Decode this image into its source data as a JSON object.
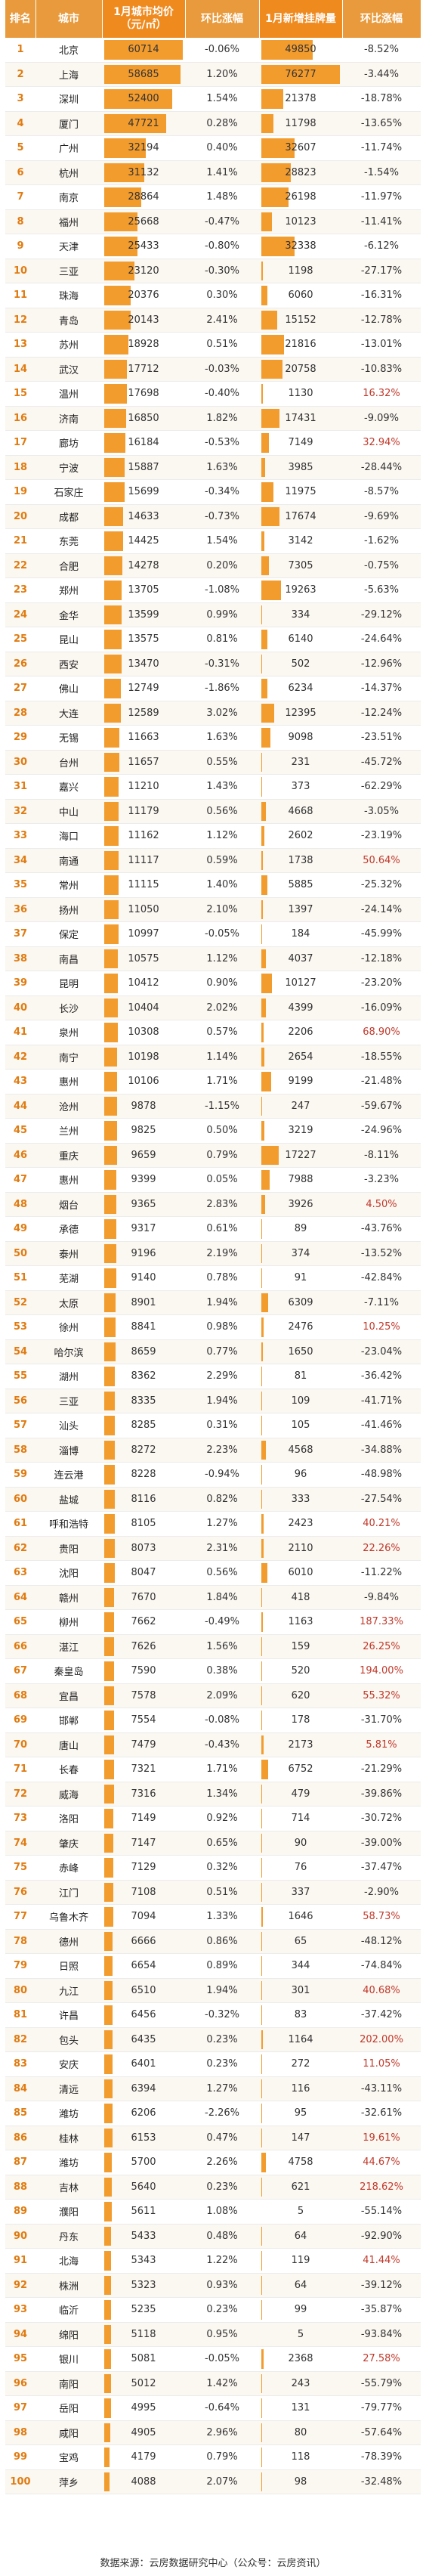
{
  "headers": {
    "rank": "排名",
    "city": "城市",
    "price": "1月城市均价（元/㎡）",
    "price_change": "环比涨幅",
    "listing": "1月新增挂牌量",
    "listing_change": "环比涨幅"
  },
  "rows": [
    {
      "rank": "1",
      "city": "北京",
      "price": "60714",
      "price_change": "-0.06%",
      "listing": "49850",
      "listing_change": "-8.52%"
    },
    {
      "rank": "2",
      "city": "上海",
      "price": "58685",
      "price_change": "1.20%",
      "listing": "76277",
      "listing_change": "-3.44%"
    },
    {
      "rank": "3",
      "city": "深圳",
      "price": "52400",
      "price_change": "1.54%",
      "listing": "21378",
      "listing_change": "-18.78%"
    },
    {
      "rank": "4",
      "city": "厦门",
      "price": "47721",
      "price_change": "0.28%",
      "listing": "11798",
      "listing_change": "-13.65%"
    },
    {
      "rank": "5",
      "city": "广州",
      "price": "32194",
      "price_change": "0.40%",
      "listing": "32607",
      "listing_change": "-11.74%"
    },
    {
      "rank": "6",
      "city": "杭州",
      "price": "31132",
      "price_change": "1.41%",
      "listing": "28823",
      "listing_change": "-1.54%"
    },
    {
      "rank": "7",
      "city": "南京",
      "price": "28864",
      "price_change": "1.48%",
      "listing": "26198",
      "listing_change": "-11.97%"
    },
    {
      "rank": "8",
      "city": "福州",
      "price": "25668",
      "price_change": "-0.47%",
      "listing": "10123",
      "listing_change": "-11.41%"
    },
    {
      "rank": "9",
      "city": "天津",
      "price": "25433",
      "price_change": "-0.80%",
      "listing": "32338",
      "listing_change": "-6.12%"
    },
    {
      "rank": "10",
      "city": "三亚",
      "price": "23120",
      "price_change": "-0.30%",
      "listing": "1198",
      "listing_change": "-27.17%"
    },
    {
      "rank": "11",
      "city": "珠海",
      "price": "20376",
      "price_change": "0.30%",
      "listing": "6060",
      "listing_change": "-16.31%"
    },
    {
      "rank": "12",
      "city": "青岛",
      "price": "20143",
      "price_change": "2.41%",
      "listing": "15152",
      "listing_change": "-12.78%"
    },
    {
      "rank": "13",
      "city": "苏州",
      "price": "18928",
      "price_change": "0.51%",
      "listing": "21816",
      "listing_change": "-13.01%"
    },
    {
      "rank": "14",
      "city": "武汉",
      "price": "17712",
      "price_change": "-0.03%",
      "listing": "20758",
      "listing_change": "-10.83%"
    },
    {
      "rank": "15",
      "city": "温州",
      "price": "17698",
      "price_change": "-0.40%",
      "listing": "1130",
      "listing_change": "16.32%"
    },
    {
      "rank": "16",
      "city": "济南",
      "price": "16850",
      "price_change": "1.82%",
      "listing": "17431",
      "listing_change": "-9.09%"
    },
    {
      "rank": "17",
      "city": "廊坊",
      "price": "16184",
      "price_change": "-0.53%",
      "listing": "7149",
      "listing_change": "32.94%"
    },
    {
      "rank": "18",
      "city": "宁波",
      "price": "15887",
      "price_change": "1.63%",
      "listing": "3985",
      "listing_change": "-28.44%"
    },
    {
      "rank": "19",
      "city": "石家庄",
      "price": "15699",
      "price_change": "-0.34%",
      "listing": "11975",
      "listing_change": "-8.57%"
    },
    {
      "rank": "20",
      "city": "成都",
      "price": "14633",
      "price_change": "-0.73%",
      "listing": "17674",
      "listing_change": "-9.69%"
    },
    {
      "rank": "21",
      "city": "东莞",
      "price": "14425",
      "price_change": "1.54%",
      "listing": "3142",
      "listing_change": "-1.62%"
    },
    {
      "rank": "22",
      "city": "合肥",
      "price": "14278",
      "price_change": "0.20%",
      "listing": "7305",
      "listing_change": "-0.75%"
    },
    {
      "rank": "23",
      "city": "郑州",
      "price": "13705",
      "price_change": "-1.08%",
      "listing": "19263",
      "listing_change": "-5.63%"
    },
    {
      "rank": "24",
      "city": "金华",
      "price": "13599",
      "price_change": "0.99%",
      "listing": "334",
      "listing_change": "-29.12%"
    },
    {
      "rank": "25",
      "city": "昆山",
      "price": "13575",
      "price_change": "0.81%",
      "listing": "6140",
      "listing_change": "-24.64%"
    },
    {
      "rank": "26",
      "city": "西安",
      "price": "13470",
      "price_change": "-0.31%",
      "listing": "502",
      "listing_change": "-12.96%"
    },
    {
      "rank": "27",
      "city": "佛山",
      "price": "12749",
      "price_change": "-1.86%",
      "listing": "6234",
      "listing_change": "-14.37%"
    },
    {
      "rank": "28",
      "city": "大连",
      "price": "12589",
      "price_change": "3.02%",
      "listing": "12395",
      "listing_change": "-12.24%"
    },
    {
      "rank": "29",
      "city": "无锡",
      "price": "11663",
      "price_change": "1.63%",
      "listing": "9098",
      "listing_change": "-23.51%"
    },
    {
      "rank": "30",
      "city": "台州",
      "price": "11657",
      "price_change": "0.55%",
      "listing": "231",
      "listing_change": "-45.72%"
    },
    {
      "rank": "31",
      "city": "嘉兴",
      "price": "11210",
      "price_change": "1.43%",
      "listing": "373",
      "listing_change": "-62.29%"
    },
    {
      "rank": "32",
      "city": "中山",
      "price": "11179",
      "price_change": "0.56%",
      "listing": "4668",
      "listing_change": "-3.05%"
    },
    {
      "rank": "33",
      "city": "海口",
      "price": "11162",
      "price_change": "1.12%",
      "listing": "2602",
      "listing_change": "-23.19%"
    },
    {
      "rank": "34",
      "city": "南通",
      "price": "11117",
      "price_change": "0.59%",
      "listing": "1738",
      "listing_change": "50.64%"
    },
    {
      "rank": "35",
      "city": "常州",
      "price": "11115",
      "price_change": "1.40%",
      "listing": "5885",
      "listing_change": "-25.32%"
    },
    {
      "rank": "36",
      "city": "扬州",
      "price": "11050",
      "price_change": "2.10%",
      "listing": "1397",
      "listing_change": "-24.14%"
    },
    {
      "rank": "37",
      "city": "保定",
      "price": "10997",
      "price_change": "-0.05%",
      "listing": "184",
      "listing_change": "-45.99%"
    },
    {
      "rank": "38",
      "city": "南昌",
      "price": "10575",
      "price_change": "1.12%",
      "listing": "4037",
      "listing_change": "-12.18%"
    },
    {
      "rank": "39",
      "city": "昆明",
      "price": "10412",
      "price_change": "0.90%",
      "listing": "10127",
      "listing_change": "-23.20%"
    },
    {
      "rank": "40",
      "city": "长沙",
      "price": "10404",
      "price_change": "2.02%",
      "listing": "4399",
      "listing_change": "-16.09%"
    },
    {
      "rank": "41",
      "city": "泉州",
      "price": "10308",
      "price_change": "0.57%",
      "listing": "2206",
      "listing_change": "68.90%"
    },
    {
      "rank": "42",
      "city": "南宁",
      "price": "10198",
      "price_change": "1.14%",
      "listing": "2654",
      "listing_change": "-18.55%"
    },
    {
      "rank": "43",
      "city": "惠州",
      "price": "10106",
      "price_change": "1.71%",
      "listing": "9199",
      "listing_change": "-21.48%"
    },
    {
      "rank": "44",
      "city": "沧州",
      "price": "9878",
      "price_change": "-1.15%",
      "listing": "247",
      "listing_change": "-59.67%"
    },
    {
      "rank": "45",
      "city": "兰州",
      "price": "9825",
      "price_change": "0.50%",
      "listing": "3219",
      "listing_change": "-24.96%"
    },
    {
      "rank": "46",
      "city": "重庆",
      "price": "9659",
      "price_change": "0.79%",
      "listing": "17227",
      "listing_change": "-8.11%"
    },
    {
      "rank": "47",
      "city": "惠州",
      "price": "9399",
      "price_change": "0.05%",
      "listing": "7988",
      "listing_change": "-3.23%"
    },
    {
      "rank": "48",
      "city": "烟台",
      "price": "9365",
      "price_change": "2.83%",
      "listing": "3926",
      "listing_change": "4.50%"
    },
    {
      "rank": "49",
      "city": "承德",
      "price": "9317",
      "price_change": "0.61%",
      "listing": "89",
      "listing_change": "-43.76%"
    },
    {
      "rank": "50",
      "city": "泰州",
      "price": "9196",
      "price_change": "2.19%",
      "listing": "374",
      "listing_change": "-13.52%"
    },
    {
      "rank": "51",
      "city": "芜湖",
      "price": "9140",
      "price_change": "0.78%",
      "listing": "91",
      "listing_change": "-42.84%"
    },
    {
      "rank": "52",
      "city": "太原",
      "price": "8901",
      "price_change": "1.94%",
      "listing": "6309",
      "listing_change": "-7.11%"
    },
    {
      "rank": "53",
      "city": "徐州",
      "price": "8841",
      "price_change": "0.98%",
      "listing": "2476",
      "listing_change": "10.25%"
    },
    {
      "rank": "54",
      "city": "哈尔滨",
      "price": "8659",
      "price_change": "0.77%",
      "listing": "1650",
      "listing_change": "-23.04%"
    },
    {
      "rank": "55",
      "city": "湖州",
      "price": "8362",
      "price_change": "2.29%",
      "listing": "81",
      "listing_change": "-36.42%"
    },
    {
      "rank": "56",
      "city": "三亚",
      "price": "8335",
      "price_change": "1.94%",
      "listing": "109",
      "listing_change": "-41.71%"
    },
    {
      "rank": "57",
      "city": "汕头",
      "price": "8285",
      "price_change": "0.31%",
      "listing": "105",
      "listing_change": "-41.46%"
    },
    {
      "rank": "58",
      "city": "淄博",
      "price": "8272",
      "price_change": "2.23%",
      "listing": "4568",
      "listing_change": "-34.88%"
    },
    {
      "rank": "59",
      "city": "连云港",
      "price": "8228",
      "price_change": "-0.94%",
      "listing": "96",
      "listing_change": "-48.98%"
    },
    {
      "rank": "60",
      "city": "盐城",
      "price": "8116",
      "price_change": "0.82%",
      "listing": "333",
      "listing_change": "-27.54%"
    },
    {
      "rank": "61",
      "city": "呼和浩特",
      "price": "8105",
      "price_change": "1.27%",
      "listing": "2423",
      "listing_change": "40.21%"
    },
    {
      "rank": "62",
      "city": "贵阳",
      "price": "8073",
      "price_change": "2.31%",
      "listing": "2110",
      "listing_change": "22.26%"
    },
    {
      "rank": "63",
      "city": "沈阳",
      "price": "8047",
      "price_change": "0.56%",
      "listing": "6010",
      "listing_change": "-11.22%"
    },
    {
      "rank": "64",
      "city": "赣州",
      "price": "7670",
      "price_change": "1.84%",
      "listing": "418",
      "listing_change": "-9.84%"
    },
    {
      "rank": "65",
      "city": "柳州",
      "price": "7662",
      "price_change": "-0.49%",
      "listing": "1163",
      "listing_change": "187.33%"
    },
    {
      "rank": "66",
      "city": "湛江",
      "price": "7626",
      "price_change": "1.56%",
      "listing": "159",
      "listing_change": "26.25%"
    },
    {
      "rank": "67",
      "city": "秦皇岛",
      "price": "7590",
      "price_change": "0.38%",
      "listing": "520",
      "listing_change": "194.00%"
    },
    {
      "rank": "68",
      "city": "宜昌",
      "price": "7578",
      "price_change": "2.09%",
      "listing": "620",
      "listing_change": "55.32%"
    },
    {
      "rank": "69",
      "city": "邯郸",
      "price": "7554",
      "price_change": "-0.08%",
      "listing": "178",
      "listing_change": "-31.70%"
    },
    {
      "rank": "70",
      "city": "唐山",
      "price": "7479",
      "price_change": "-0.43%",
      "listing": "2173",
      "listing_change": "5.81%"
    },
    {
      "rank": "71",
      "city": "长春",
      "price": "7321",
      "price_change": "1.71%",
      "listing": "6752",
      "listing_change": "-21.29%"
    },
    {
      "rank": "72",
      "city": "威海",
      "price": "7316",
      "price_change": "1.34%",
      "listing": "479",
      "listing_change": "-39.86%"
    },
    {
      "rank": "73",
      "city": "洛阳",
      "price": "7149",
      "price_change": "0.92%",
      "listing": "714",
      "listing_change": "-30.72%"
    },
    {
      "rank": "74",
      "city": "肇庆",
      "price": "7147",
      "price_change": "0.65%",
      "listing": "90",
      "listing_change": "-39.00%"
    },
    {
      "rank": "75",
      "city": "赤峰",
      "price": "7129",
      "price_change": "0.32%",
      "listing": "76",
      "listing_change": "-37.47%"
    },
    {
      "rank": "76",
      "city": "江门",
      "price": "7108",
      "price_change": "0.51%",
      "listing": "337",
      "listing_change": "-2.90%"
    },
    {
      "rank": "77",
      "city": "乌鲁木齐",
      "price": "7094",
      "price_change": "1.33%",
      "listing": "1646",
      "listing_change": "58.73%"
    },
    {
      "rank": "78",
      "city": "德州",
      "price": "6666",
      "price_change": "0.86%",
      "listing": "65",
      "listing_change": "-48.12%"
    },
    {
      "rank": "79",
      "city": "日照",
      "price": "6654",
      "price_change": "0.89%",
      "listing": "344",
      "listing_change": "-74.84%"
    },
    {
      "rank": "80",
      "city": "九江",
      "price": "6510",
      "price_change": "1.94%",
      "listing": "301",
      "listing_change": "40.68%"
    },
    {
      "rank": "81",
      "city": "许昌",
      "price": "6456",
      "price_change": "-0.32%",
      "listing": "83",
      "listing_change": "-37.42%"
    },
    {
      "rank": "82",
      "city": "包头",
      "price": "6435",
      "price_change": "0.23%",
      "listing": "1164",
      "listing_change": "202.00%"
    },
    {
      "rank": "83",
      "city": "安庆",
      "price": "6401",
      "price_change": "0.23%",
      "listing": "272",
      "listing_change": "11.05%"
    },
    {
      "rank": "84",
      "city": "清远",
      "price": "6394",
      "price_change": "1.27%",
      "listing": "116",
      "listing_change": "-43.11%"
    },
    {
      "rank": "85",
      "city": "潍坊",
      "price": "6206",
      "price_change": "-2.26%",
      "listing": "95",
      "listing_change": "-32.61%"
    },
    {
      "rank": "86",
      "city": "桂林",
      "price": "6153",
      "price_change": "0.47%",
      "listing": "147",
      "listing_change": "19.61%"
    },
    {
      "rank": "87",
      "city": "潍坊",
      "price": "5700",
      "price_change": "2.26%",
      "listing": "4758",
      "listing_change": "44.67%"
    },
    {
      "rank": "88",
      "city": "吉林",
      "price": "5640",
      "price_change": "0.23%",
      "listing": "621",
      "listing_change": "218.62%"
    },
    {
      "rank": "89",
      "city": "濮阳",
      "price": "5611",
      "price_change": "1.08%",
      "listing": "5",
      "listing_change": "-55.14%"
    },
    {
      "rank": "90",
      "city": "丹东",
      "price": "5433",
      "price_change": "0.48%",
      "listing": "64",
      "listing_change": "-92.90%"
    },
    {
      "rank": "91",
      "city": "北海",
      "price": "5343",
      "price_change": "1.22%",
      "listing": "119",
      "listing_change": "41.44%"
    },
    {
      "rank": "92",
      "city": "株洲",
      "price": "5323",
      "price_change": "0.93%",
      "listing": "64",
      "listing_change": "-39.12%"
    },
    {
      "rank": "93",
      "city": "临沂",
      "price": "5235",
      "price_change": "0.23%",
      "listing": "99",
      "listing_change": "-35.87%"
    },
    {
      "rank": "94",
      "city": "绵阳",
      "price": "5118",
      "price_change": "0.95%",
      "listing": "5",
      "listing_change": "-93.84%"
    },
    {
      "rank": "95",
      "city": "银川",
      "price": "5081",
      "price_change": "-0.05%",
      "listing": "2368",
      "listing_change": "27.58%"
    },
    {
      "rank": "96",
      "city": "南阳",
      "price": "5012",
      "price_change": "1.42%",
      "listing": "243",
      "listing_change": "-55.79%"
    },
    {
      "rank": "97",
      "city": "岳阳",
      "price": "4995",
      "price_change": "-0.64%",
      "listing": "131",
      "listing_change": "-79.77%"
    },
    {
      "rank": "98",
      "city": "咸阳",
      "price": "4905",
      "price_change": "2.96%",
      "listing": "80",
      "listing_change": "-57.64%"
    },
    {
      "rank": "99",
      "city": "宝鸡",
      "price": "4179",
      "price_change": "0.79%",
      "listing": "118",
      "listing_change": "-78.39%"
    },
    {
      "rank": "100",
      "city": "萍乡",
      "price": "4088",
      "price_change": "2.07%",
      "listing": "98",
      "listing_change": "-32.48%"
    }
  ],
  "footer": {
    "source": "数据来源：云房数据研究中心（公众号：云房资讯）"
  },
  "colors": {
    "header_bg": "#e89a3c",
    "bar_fill": "#f39c2e",
    "positive_change": "#c0392b"
  }
}
